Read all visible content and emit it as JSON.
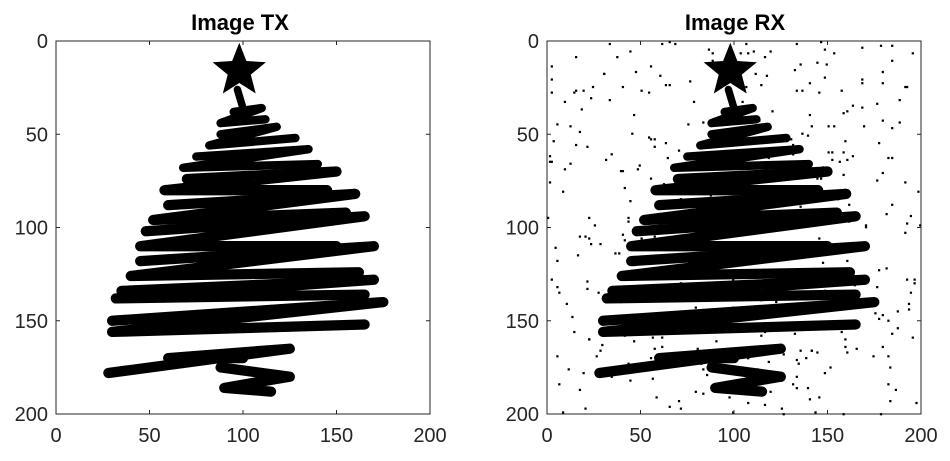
{
  "chart_data": [
    {
      "type": "heatmap",
      "title": "Image TX",
      "xlabel": "",
      "ylabel": "",
      "xlim": [
        0,
        200
      ],
      "ylim": [
        0,
        200
      ],
      "y_reversed": true,
      "xticks": [
        0,
        50,
        100,
        150,
        200
      ],
      "yticks": [
        0,
        50,
        100,
        150,
        200
      ],
      "colormap": "binary (black = 1, white = 0)",
      "content": "black-and-white christmas tree drawing: star on top, zig-zag scribble branches, trunk zig-zag",
      "star_center": [
        98,
        16
      ],
      "branch_strokes": [
        [
          [
            95,
            38
          ],
          [
            110,
            36
          ],
          [
            88,
            44
          ],
          [
            112,
            42
          ]
        ],
        [
          [
            88,
            50
          ],
          [
            118,
            46
          ],
          [
            82,
            56
          ],
          [
            128,
            52
          ]
        ],
        [
          [
            75,
            62
          ],
          [
            135,
            58
          ],
          [
            68,
            68
          ],
          [
            140,
            66
          ]
        ],
        [
          [
            70,
            74
          ],
          [
            150,
            70
          ],
          [
            58,
            80
          ],
          [
            145,
            80
          ]
        ],
        [
          [
            60,
            88
          ],
          [
            160,
            82
          ],
          [
            52,
            96
          ],
          [
            155,
            92
          ]
        ],
        [
          [
            48,
            102
          ],
          [
            165,
            94
          ],
          [
            45,
            110
          ],
          [
            150,
            110
          ]
        ],
        [
          [
            45,
            118
          ],
          [
            170,
            110
          ],
          [
            40,
            126
          ],
          [
            162,
            124
          ]
        ],
        [
          [
            35,
            134
          ],
          [
            170,
            128
          ],
          [
            32,
            138
          ],
          [
            165,
            136
          ]
        ],
        [
          [
            30,
            150
          ],
          [
            175,
            140
          ],
          [
            30,
            156
          ],
          [
            165,
            152
          ]
        ],
        [
          [
            28,
            178
          ],
          [
            125,
            165
          ],
          [
            60,
            170
          ],
          [
            100,
            170
          ]
        ],
        [
          [
            88,
            175
          ],
          [
            125,
            180
          ],
          [
            90,
            186
          ],
          [
            115,
            188
          ]
        ]
      ],
      "noise_density": 0
    },
    {
      "type": "heatmap",
      "title": "Image RX",
      "xlabel": "",
      "ylabel": "",
      "xlim": [
        0,
        200
      ],
      "ylim": [
        0,
        200
      ],
      "y_reversed": true,
      "xticks": [
        0,
        50,
        100,
        150,
        200
      ],
      "yticks": [
        0,
        50,
        100,
        150,
        200
      ],
      "colormap": "binary (black = 1, white = 0)",
      "content": "same christmas tree as TX with random salt-and-pepper bit-flip noise",
      "noise_density": 0.02,
      "noise_seed": 12345
    }
  ]
}
